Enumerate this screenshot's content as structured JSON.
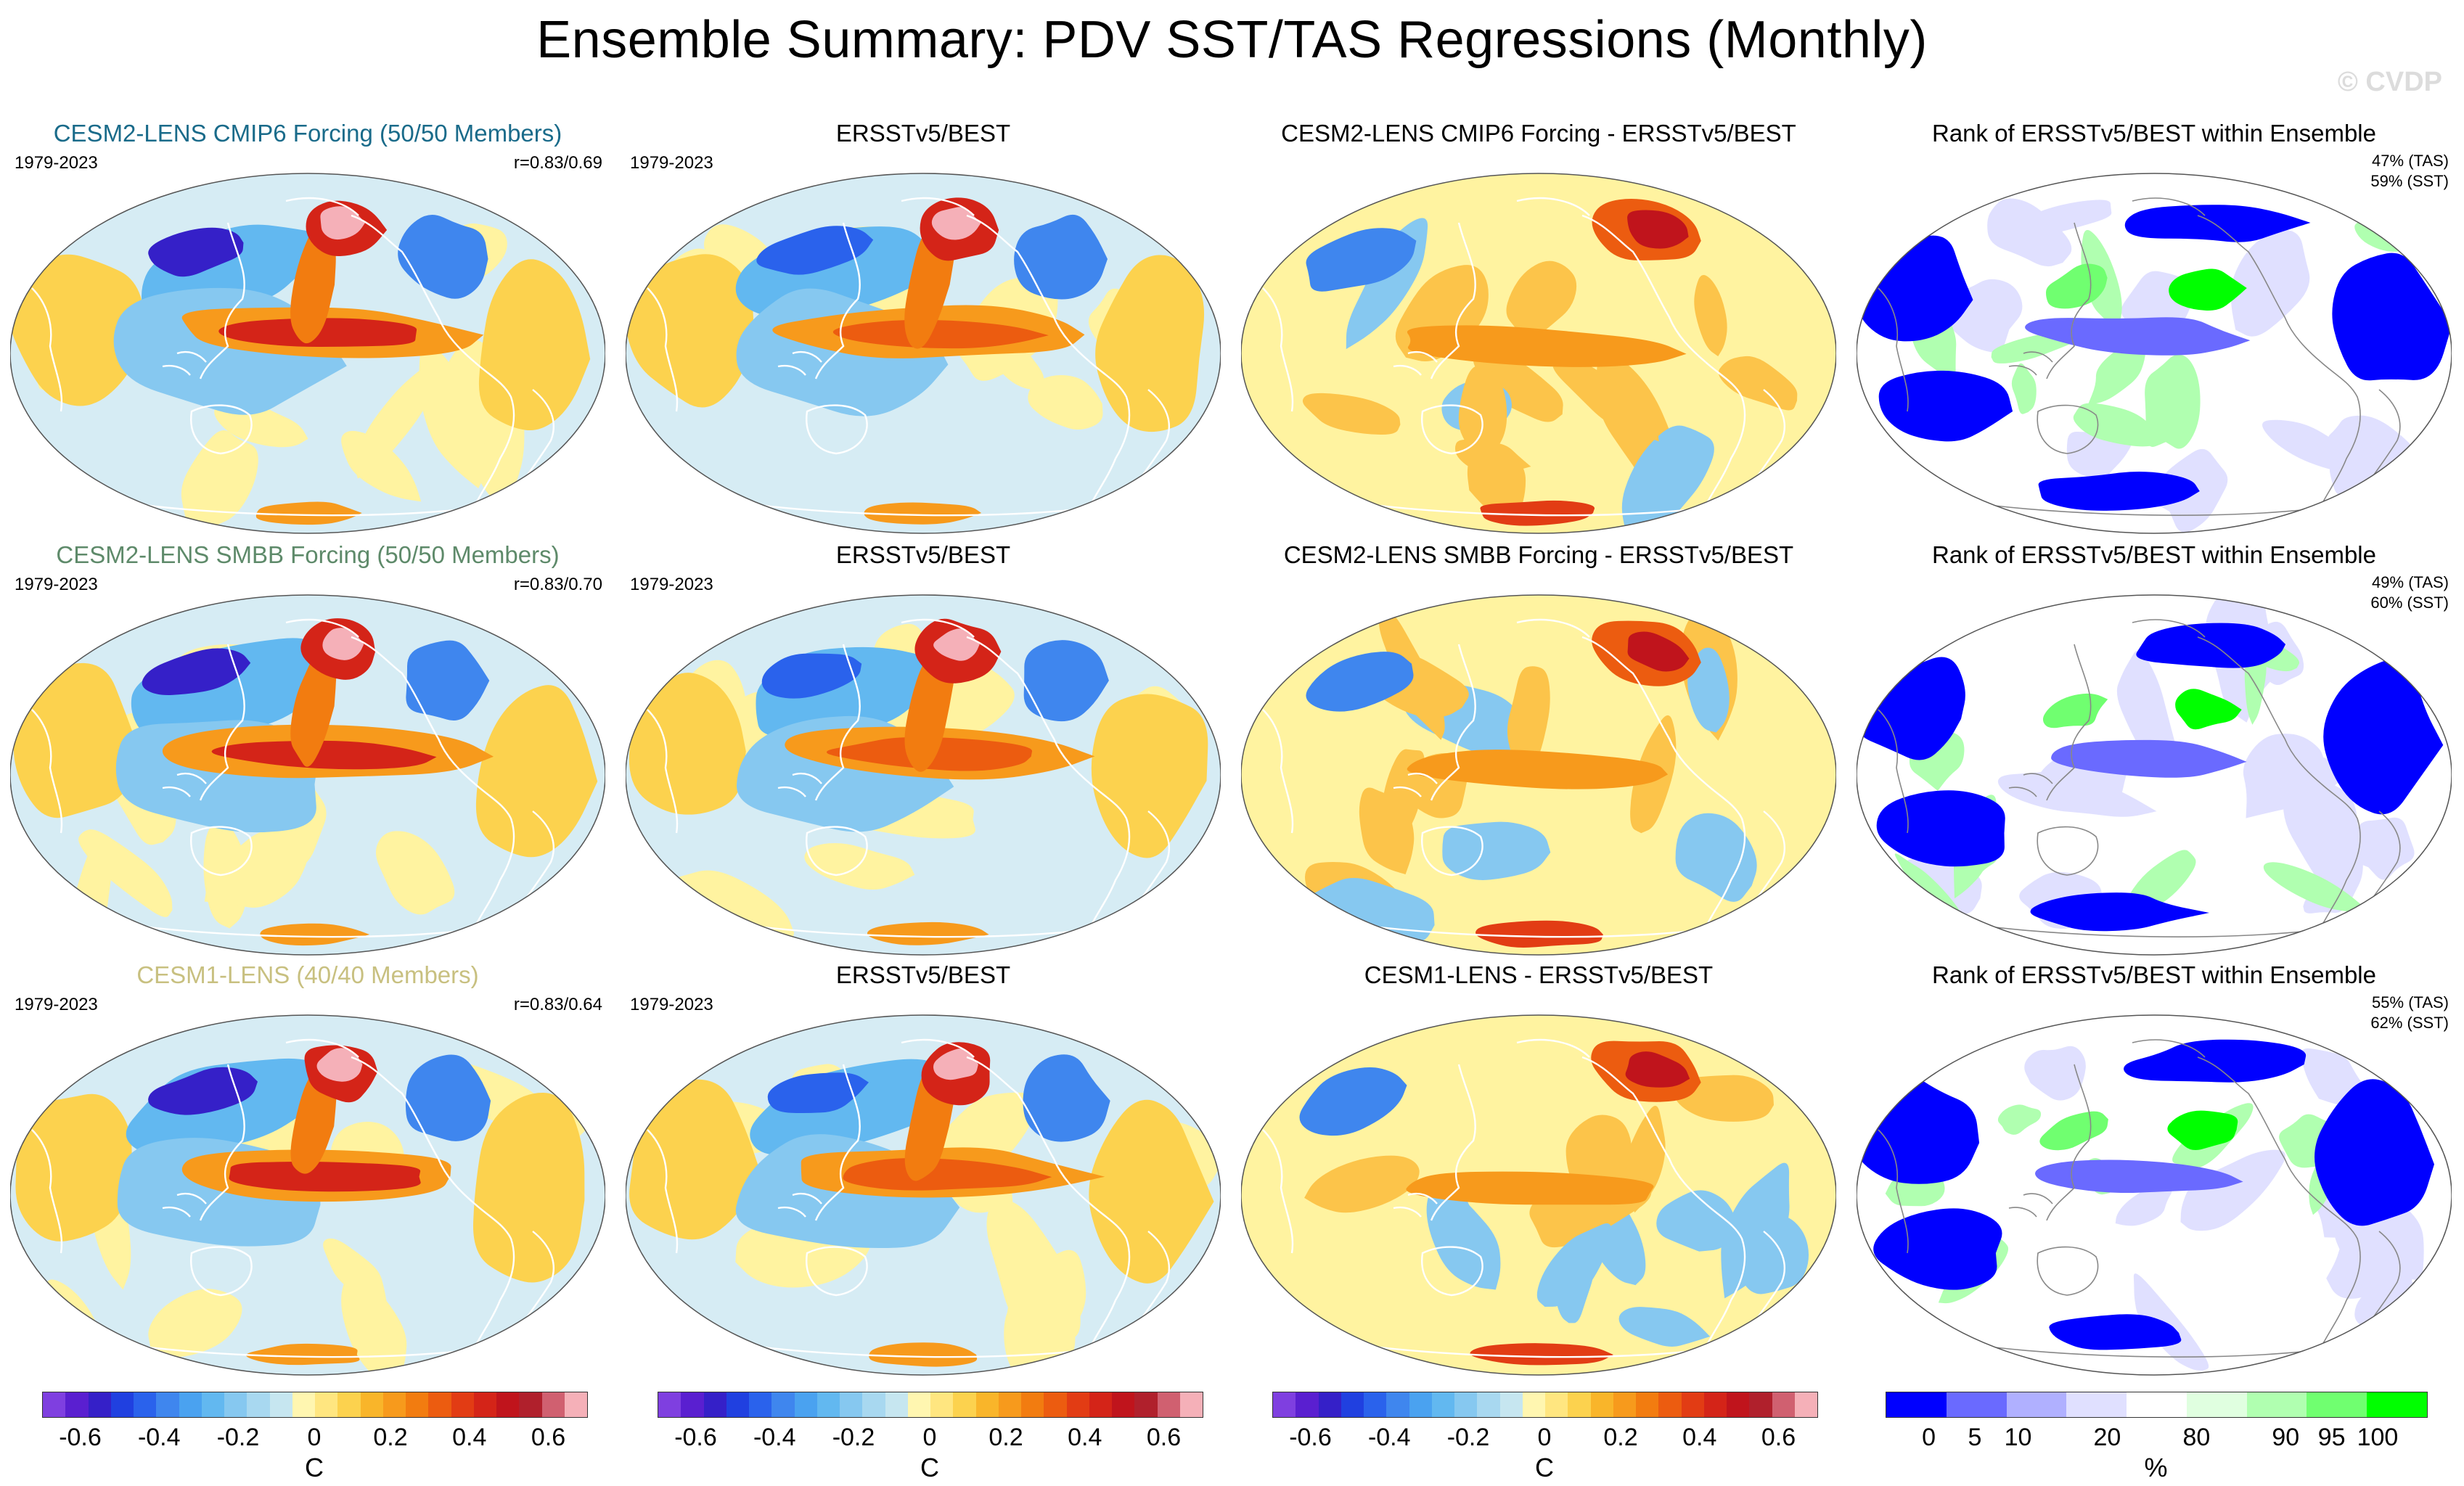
{
  "title": "Ensemble Summary: PDV SST/TAS Regressions (Monthly)",
  "watermark": "© CVDP",
  "colors": {
    "row1_title": "#1a6b8a",
    "row2_title": "#5e8a6a",
    "row3_title": "#c8c080",
    "ocean_blue_dark": "#5a1fd0",
    "ocean_blue": "#3f8ee8",
    "ocean_light": "#bfe0f0",
    "ocean_yellow": "#fff3a0",
    "ocean_orange": "#f79a1c",
    "ocean_red": "#e02418",
    "ocean_pink": "#f5b0b8",
    "rank_blue": "#0000ff",
    "rank_green": "#00ff00"
  },
  "rows": [
    {
      "model_title": "CESM2-LENS CMIP6 Forcing (50/50 Members)",
      "period": "1979-2023",
      "correlation": "r=0.83/0.69",
      "obs_title": "ERSSTv5/BEST",
      "obs_period": "1979-2023",
      "diff_title": "CESM2-LENS CMIP6 Forcing - ERSSTv5/BEST",
      "rank_title": "Rank of ERSSTv5/BEST within Ensemble",
      "rank_tas": "47% (TAS)",
      "rank_sst": "59% (SST)"
    },
    {
      "model_title": "CESM2-LENS SMBB Forcing (50/50 Members)",
      "period": "1979-2023",
      "correlation": "r=0.83/0.70",
      "obs_title": "ERSSTv5/BEST",
      "obs_period": "1979-2023",
      "diff_title": "CESM2-LENS SMBB Forcing - ERSSTv5/BEST",
      "rank_title": "Rank of ERSSTv5/BEST within Ensemble",
      "rank_tas": "49% (TAS)",
      "rank_sst": "60% (SST)"
    },
    {
      "model_title": "CESM1-LENS (40/40 Members)",
      "period": "1979-2023",
      "correlation": "r=0.83/0.64",
      "obs_title": "ERSSTv5/BEST",
      "obs_period": "1979-2023",
      "diff_title": "CESM1-LENS - ERSSTv5/BEST",
      "rank_title": "Rank of ERSSTv5/BEST within Ensemble",
      "rank_tas": "55% (TAS)",
      "rank_sst": "62% (SST)"
    }
  ],
  "colorbar_regression": {
    "labels": [
      "-0.6",
      "-0.4",
      "-0.2",
      "0",
      "0.2",
      "0.4",
      "0.6"
    ],
    "unit": "C",
    "colors": [
      "#7f3fe0",
      "#5a1fd0",
      "#3520c8",
      "#2040e0",
      "#2a62ec",
      "#3f86ee",
      "#4aa2f0",
      "#62b8f0",
      "#86c8f0",
      "#a8d8f0",
      "#c6e6f0",
      "#fff6b0",
      "#ffe680",
      "#fcd24e",
      "#f9b52a",
      "#f79a1c",
      "#f27c10",
      "#ec5c10",
      "#e23c14",
      "#d42418",
      "#c0141c",
      "#b0202c",
      "#d06070",
      "#f5b0b8"
    ]
  },
  "colorbar_rank": {
    "labels": [
      "0",
      "5",
      "10",
      "20",
      "80",
      "90",
      "95",
      "100"
    ],
    "unit": "%",
    "colors": [
      "#0000ff",
      "#6a6aff",
      "#b0b0ff",
      "#e0e0ff",
      "#ffffff",
      "#e0ffe0",
      "#b0ffb0",
      "#70ff70",
      "#00ff00"
    ]
  }
}
